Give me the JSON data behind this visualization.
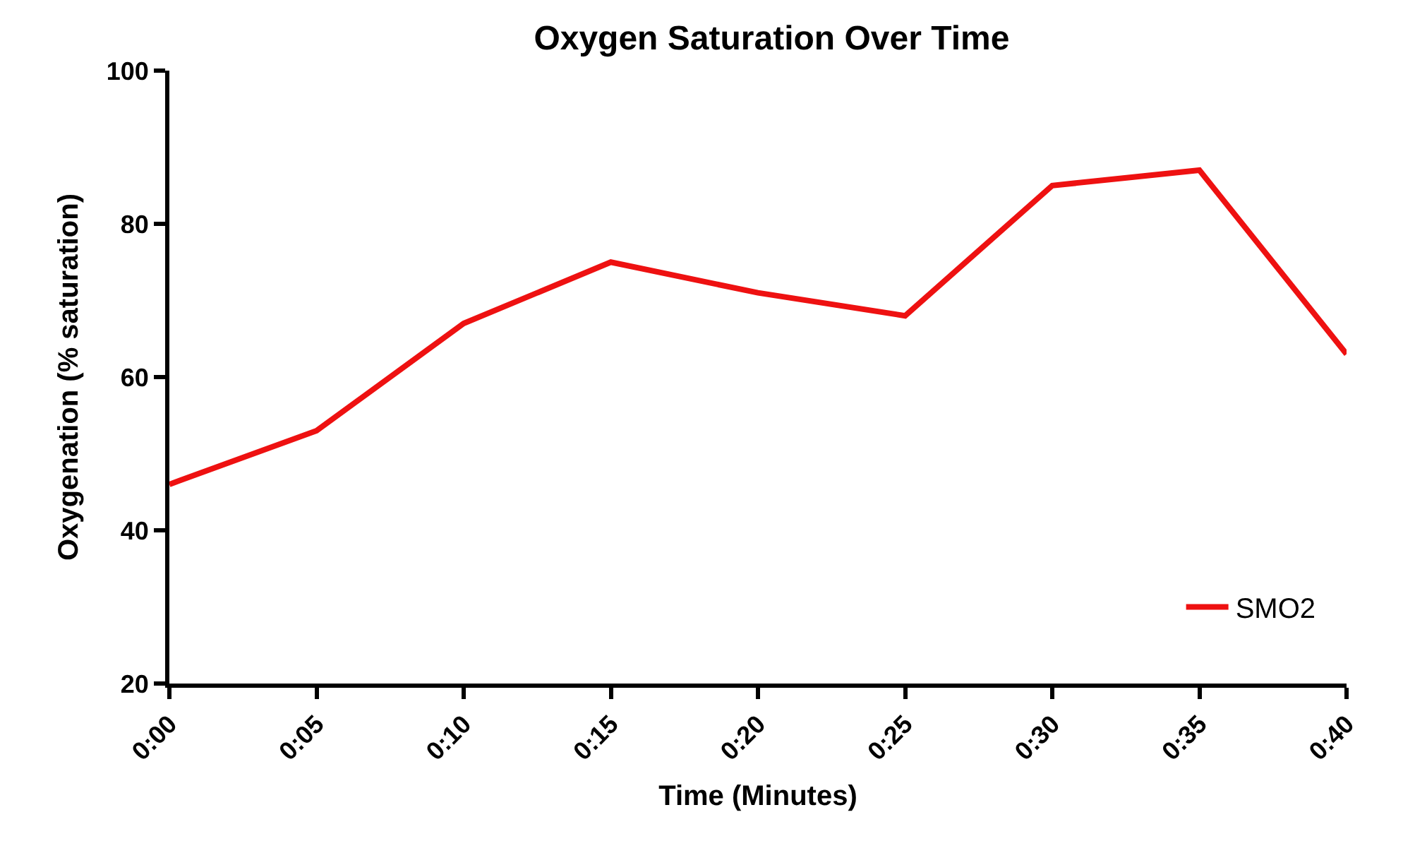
{
  "chart_data": {
    "type": "line",
    "title": "Oxygen Saturation Over Time",
    "xlabel": "Time (Minutes)",
    "ylabel": "Oxygenation (% saturation)",
    "x": [
      0,
      5,
      10,
      15,
      20,
      25,
      30,
      35,
      40
    ],
    "series": [
      {
        "name": "SMO2",
        "color": "#ee1111",
        "values": [
          46,
          53,
          67,
          75,
          71,
          68,
          85,
          87,
          63
        ]
      }
    ],
    "xlim": [
      0,
      40
    ],
    "xticks": [
      {
        "value": 0,
        "label": "0:00"
      },
      {
        "value": 5,
        "label": "0:05"
      },
      {
        "value": 10,
        "label": "0:10"
      },
      {
        "value": 15,
        "label": "0:15"
      },
      {
        "value": 20,
        "label": "0:20"
      },
      {
        "value": 25,
        "label": "0:25"
      },
      {
        "value": 30,
        "label": "0:30"
      },
      {
        "value": 35,
        "label": "0:35"
      },
      {
        "value": 40,
        "label": "0:40"
      }
    ],
    "ylim": [
      20,
      100
    ],
    "yticks": [
      20,
      40,
      60,
      80,
      100
    ],
    "legend": "bottom right",
    "marker": "none",
    "line_style": "solid"
  }
}
